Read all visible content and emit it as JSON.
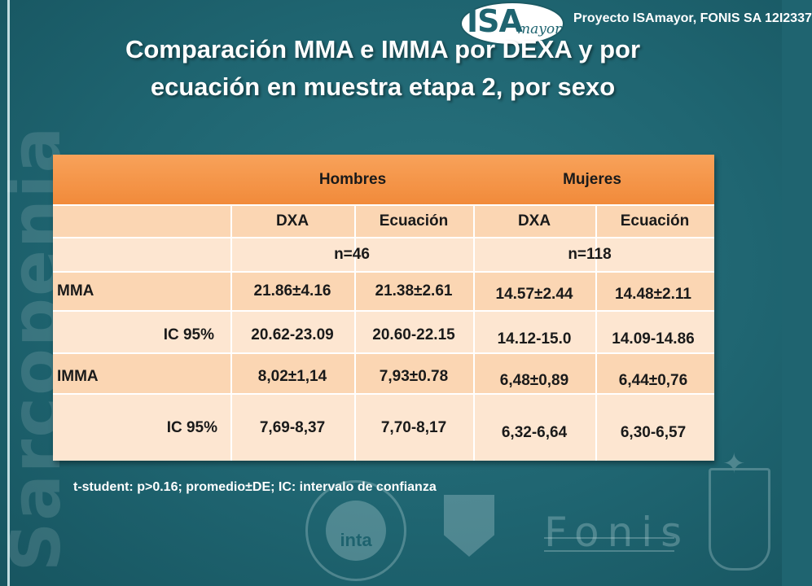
{
  "header": {
    "logo_main": "ISA",
    "logo_sub": "mayor",
    "project": "Proyecto ISAmayor, FONIS SA 12I2337"
  },
  "title_lines": [
    "Comparación MMA e IMMA por DEXA y por",
    "ecuación en muestra etapa 2, por sexo"
  ],
  "side_word": "Sarcopenia",
  "table": {
    "groups": [
      "Hombres",
      "Mujeres"
    ],
    "methods": [
      "DXA",
      "Ecuación",
      "DXA",
      "Ecuación"
    ],
    "n_values": [
      "n=46",
      "n=118"
    ],
    "rows": [
      {
        "label": "MMA",
        "values": [
          "21.86±4.16",
          "21.38±2.61",
          "14.57±2.44",
          "14.48±2.11"
        ]
      },
      {
        "label": "IC 95%",
        "values": [
          "20.62-23.09",
          "20.60-22.15",
          "14.12-15.0",
          "14.09-14.86"
        ]
      },
      {
        "label": "IMMA",
        "values": [
          "8,02±1,14",
          "7,93±0.78",
          "6,48±0,89",
          "6,44±0,76"
        ]
      },
      {
        "label": "IC 95%",
        "values": [
          "7,69-8,37",
          "7,70-8,17",
          "6,32-6,64",
          "6,30-6,57"
        ]
      }
    ]
  },
  "footnote": "t-student: p>0.16; promedio±DE; IC: intervalo de confianza",
  "footer_logos": {
    "inta": "inta",
    "fonis": "Fonis"
  },
  "colors": {
    "background": "#1f6470",
    "header_row": "#f18a3a",
    "row_dark": "#fbd6b3",
    "row_light": "#fde6d1"
  }
}
